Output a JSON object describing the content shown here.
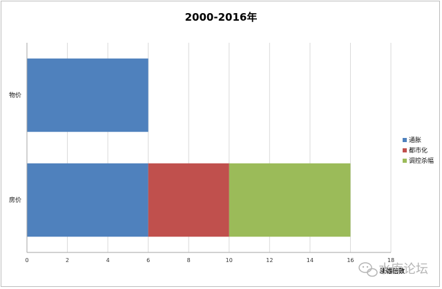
{
  "chart_data": {
    "type": "bar",
    "orientation": "horizontal",
    "stacked": true,
    "title": "2000-2016年",
    "categories": [
      "物价",
      "房价"
    ],
    "series": [
      {
        "name": "通胀",
        "values": [
          6,
          6
        ],
        "color": "#4f81bd"
      },
      {
        "name": "都市化",
        "values": [
          0,
          4
        ],
        "color": "#c0504d"
      },
      {
        "name": "调控杀幅",
        "values": [
          0,
          6
        ],
        "color": "#9bbb59"
      }
    ],
    "xlim": [
      0,
      18
    ],
    "xticks": [
      0,
      2,
      4,
      6,
      8,
      10,
      12,
      14,
      16,
      18
    ],
    "xlabel": "涨幅倍数",
    "ylabel": "",
    "grid": "vertical",
    "legend_position": "right"
  },
  "watermark": {
    "text": "水库论坛",
    "icon": "wechat-icon"
  },
  "colors": {
    "grid": "#d9d9d9",
    "axis": "#a6a6a6",
    "border": "#bdbdbd"
  }
}
